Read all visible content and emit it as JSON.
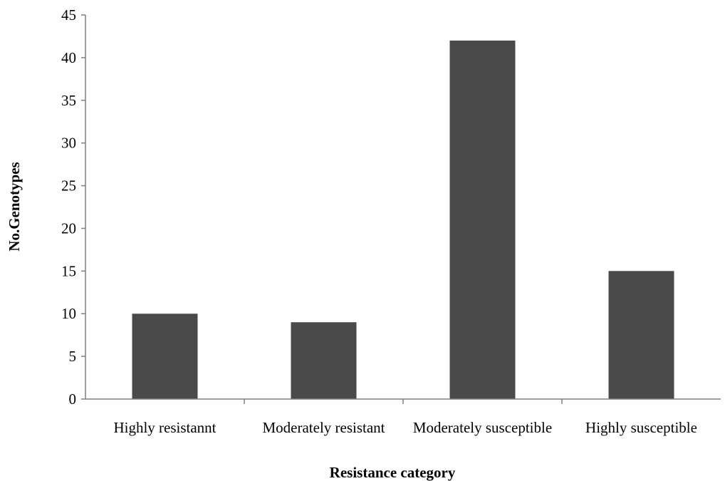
{
  "chart_data": {
    "type": "bar",
    "title": "",
    "xlabel": "Resistance category",
    "ylabel": "No.Genotypes",
    "categories": [
      "Highly resistannt",
      "Moderately resistant",
      "Moderately susceptible",
      "Highly susceptible"
    ],
    "values": [
      10,
      9,
      42,
      15
    ],
    "ylim": [
      0,
      45
    ],
    "yticks": [
      0,
      5,
      10,
      15,
      20,
      25,
      30,
      35,
      40,
      45
    ],
    "grid": false,
    "legend": "none",
    "bar_color": "#4a4a4a",
    "axis_color": "#7f7f7f"
  }
}
